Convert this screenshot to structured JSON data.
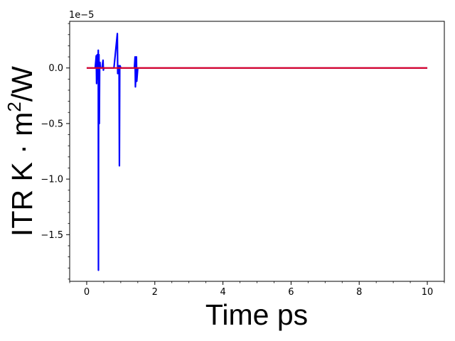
{
  "chart_data": {
    "type": "line",
    "xlabel": "Time ps",
    "ylabel_main": "ITR K · m",
    "ylabel_sup": "2",
    "ylabel_tail": "/W",
    "offset_label": "1e−5",
    "xlim": [
      -0.5,
      10.5
    ],
    "ylim": [
      -1.92,
      0.42
    ],
    "x_ticks": [
      0,
      2,
      4,
      6,
      8,
      10
    ],
    "x_tick_labels": [
      "0",
      "2",
      "4",
      "6",
      "8",
      "10"
    ],
    "y_ticks": [
      0.0,
      -0.5,
      -1.0,
      -1.5
    ],
    "y_tick_labels": [
      "0.0",
      "−0.5",
      "−1.0",
      "−1.5"
    ],
    "grid": false,
    "series": [
      {
        "color": "#0000ff",
        "x": [
          0.0,
          0.25,
          0.28,
          0.29,
          0.3,
          0.31,
          0.32,
          0.33,
          0.34,
          0.345,
          0.35,
          0.36,
          0.37,
          0.38,
          0.39,
          0.4,
          0.45,
          0.48,
          0.49,
          0.5,
          0.55,
          0.8,
          0.9,
          0.91,
          0.92,
          0.95,
          0.96,
          0.97,
          0.98,
          1.0,
          1.4,
          1.42,
          1.43,
          1.45,
          1.46,
          1.47,
          1.5,
          2.0,
          10.0
        ],
        "y": [
          0.0,
          0.0,
          0.11,
          -0.14,
          0.0,
          0.12,
          -0.1,
          0.0,
          0.16,
          -1.82,
          0.0,
          0.12,
          -0.5,
          0.0,
          0.05,
          0.0,
          0.0,
          0.07,
          -0.02,
          0.0,
          0.0,
          0.0,
          0.31,
          -0.05,
          0.0,
          0.02,
          -0.88,
          0.0,
          0.02,
          0.0,
          0.0,
          0.1,
          -0.17,
          0.0,
          0.1,
          -0.12,
          0.0,
          0.0,
          0.0
        ]
      },
      {
        "color": "#e3001b",
        "x": [
          0.0,
          10.0
        ],
        "y": [
          0.0,
          0.0
        ]
      }
    ]
  }
}
